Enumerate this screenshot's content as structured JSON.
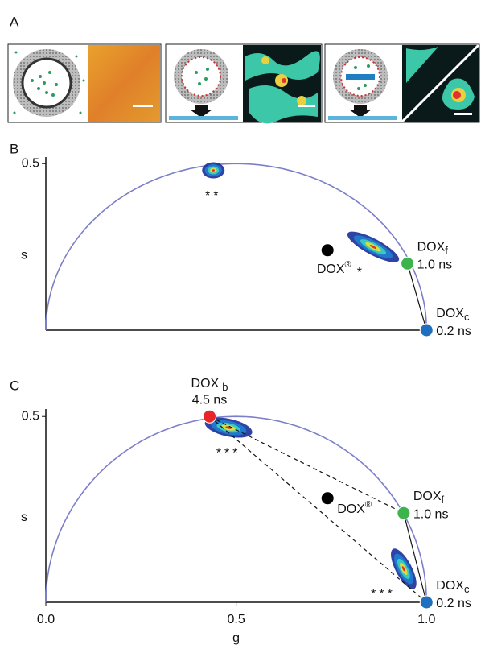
{
  "panel_labels": [
    "A",
    "B",
    "C"
  ],
  "chart_data": [
    {
      "type": "phasor",
      "ylabel": "s",
      "xlim": [
        0,
        1.01
      ],
      "ylim": [
        0,
        0.52
      ],
      "yticks": [
        0.5
      ],
      "circle_color": "#7b7fc8",
      "points": [
        {
          "name": "DOX",
          "sup": "®",
          "x": 0.74,
          "y": 0.24,
          "color": "#000000",
          "label_side": "below"
        },
        {
          "name": "DOX",
          "sub": "f",
          "lifetime": "1.0 ns",
          "x": 0.95,
          "y": 0.2,
          "color": "#3cb44b",
          "label_side": "right"
        },
        {
          "name": "DOX",
          "sub": "c",
          "lifetime": "0.2 ns",
          "x": 1.0,
          "y": 0.0,
          "color": "#1f6fbf",
          "label_side": "right"
        }
      ],
      "clusters": [
        {
          "label": "**",
          "x": 0.44,
          "y": 0.48,
          "label_side": "below"
        },
        {
          "label": "*",
          "x": 0.86,
          "y": 0.25,
          "label_side": "below-left"
        }
      ]
    },
    {
      "type": "phasor",
      "ylabel": "s",
      "xlabel": "g",
      "xlim": [
        0,
        1.01
      ],
      "ylim": [
        0,
        0.52
      ],
      "xticks": [
        {
          "value": 0,
          "label": "0.0"
        },
        0.5,
        {
          "value": 1,
          "label": "1.0"
        }
      ],
      "yticks": [
        0.5
      ],
      "circle_color": "#7b7fc8",
      "points": [
        {
          "name": "DOX",
          "sup": "®",
          "x": 0.74,
          "y": 0.28,
          "color": "#000000",
          "label_side": "right-below"
        },
        {
          "name": "DOX",
          "sub": "f",
          "lifetime": "1.0 ns",
          "x": 0.94,
          "y": 0.24,
          "color": "#3cb44b",
          "label_side": "right"
        },
        {
          "name": "DOX",
          "sub": "c",
          "lifetime": "0.2 ns",
          "x": 1.0,
          "y": 0.0,
          "color": "#1f6fbf",
          "label_side": "right"
        },
        {
          "name": "DOX",
          "sub": "b",
          "lifetime": "4.5 ns",
          "x": 0.43,
          "y": 0.5,
          "color": "#e8252a",
          "label_side": "above"
        }
      ],
      "clusters": [
        {
          "label": "***",
          "x": 0.48,
          "y": 0.47,
          "label_side": "below"
        },
        {
          "label": "***",
          "x": 0.94,
          "y": 0.09,
          "label_side": "below-left"
        }
      ]
    }
  ]
}
